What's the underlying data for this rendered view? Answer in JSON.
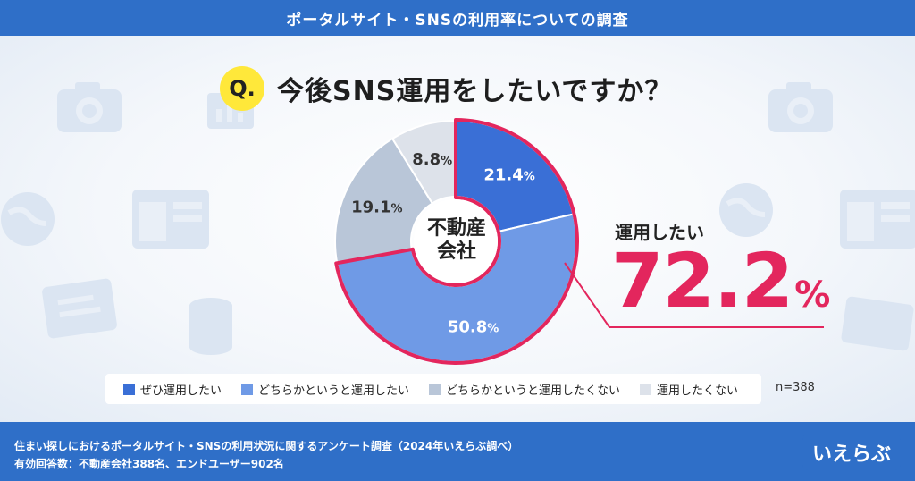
{
  "header": {
    "title": "ポータルサイト・SNSの利用率についての調査"
  },
  "question": {
    "badge": "Q.",
    "text": "今後SNS運用をしたいですか？"
  },
  "center": {
    "line1": "不動産",
    "line2": "会社"
  },
  "highlight": {
    "caption": "運用したい",
    "value": "72.2",
    "unit": "%"
  },
  "sample": {
    "label": "n=388"
  },
  "footer": {
    "line1": "住まい探しにおけるポータルサイト・SNSの利用状況に関するアンケート調査（2024年いえらぶ調べ）",
    "line2": "有効回答数：不動産会社388名、エンドユーザー902名"
  },
  "logo": {
    "text": "いえらぶ"
  },
  "colors": {
    "header": "#2f6fc8",
    "accent": "#e3265d",
    "badge": "#ffe83a"
  },
  "chart_data": {
    "type": "pie",
    "variant": "donut",
    "center_label": "不動産会社",
    "unit": "%",
    "slices": [
      {
        "label": "ぜひ運用したい",
        "value": 21.4,
        "color": "#3a6fd6",
        "text_color": "#ffffff"
      },
      {
        "label": "どちらかというと運用したい",
        "value": 50.8,
        "color": "#6f9ae6",
        "text_color": "#ffffff"
      },
      {
        "label": "どちらかというと運用したくない",
        "value": 19.1,
        "color": "#b9c6d8",
        "text_color": "#333333"
      },
      {
        "label": "運用したくない",
        "value": 8.8,
        "color": "#dde2ea",
        "text_color": "#333333"
      }
    ],
    "highlight_group": {
      "label": "運用したい",
      "value": 72.2,
      "slices": [
        0,
        1
      ]
    },
    "legend_position": "bottom",
    "n": 388
  }
}
